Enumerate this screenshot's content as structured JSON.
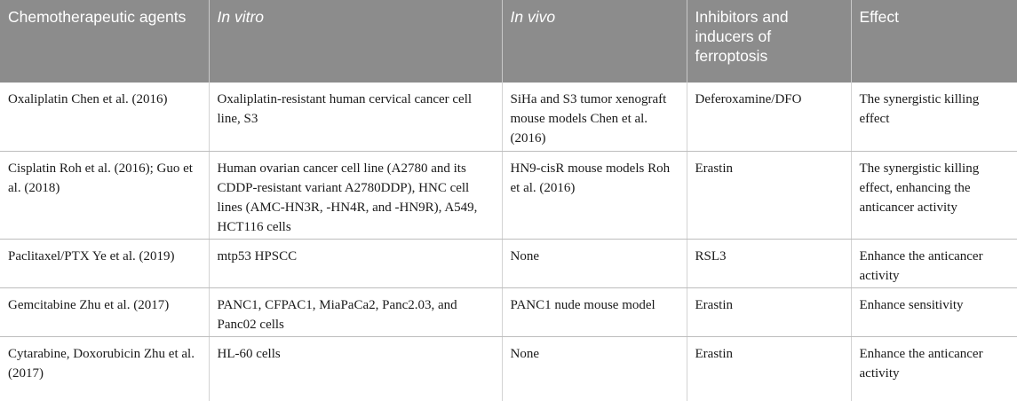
{
  "headers": [
    "Chemotherapeutic agents",
    "In vitro",
    "In vivo",
    "Inhibitors and inducers of ferroptosis",
    "Effect"
  ],
  "rows": [
    [
      "Oxaliplatin Chen et al. (2016)",
      "Oxaliplatin-resistant human cervical cancer cell line, S3",
      "SiHa and S3 tumor xenograft mouse models Chen et al. (2016)",
      "Deferoxamine/DFO",
      "The synergistic killing effect"
    ],
    [
      "Cisplatin Roh et al. (2016); Guo et al. (2018)",
      "Human ovarian cancer cell line (A2780 and its CDDP-resistant variant A2780DDP), HNC cell lines (AMC-HN3R, -HN4R, and -HN9R), A549, HCT116 cells",
      "HN9-cisR mouse models Roh et al. (2016)",
      "Erastin",
      "The synergistic killing effect, enhancing the anticancer activity"
    ],
    [
      "Paclitaxel/PTX Ye et al. (2019)",
      "mtp53 HPSCC",
      "None",
      "RSL3",
      "Enhance the anticancer activity"
    ],
    [
      "Gemcitabine Zhu et al. (2017)",
      "PANC1, CFPAC1, MiaPaCa2, Panc2.03, and Panc02 cells",
      "PANC1 nude mouse model",
      "Erastin",
      "Enhance sensitivity"
    ],
    [
      "Cytarabine, Doxorubicin Zhu et al. (2017)",
      "HL-60 cells",
      "None",
      "Erastin",
      "Enhance the anticancer activity"
    ]
  ]
}
